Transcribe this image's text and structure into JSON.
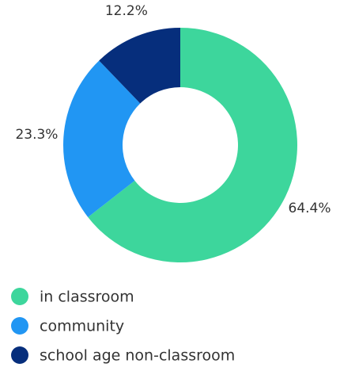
{
  "chart_data": {
    "type": "donut",
    "categories": [
      "in classroom",
      "community",
      "school age non-classroom"
    ],
    "values": [
      64.4,
      23.3,
      12.2
    ],
    "value_labels": [
      "64.4%",
      "23.3%",
      "12.2%"
    ],
    "colors": [
      "#3dd69c",
      "#2196f3",
      "#062e7c"
    ]
  }
}
